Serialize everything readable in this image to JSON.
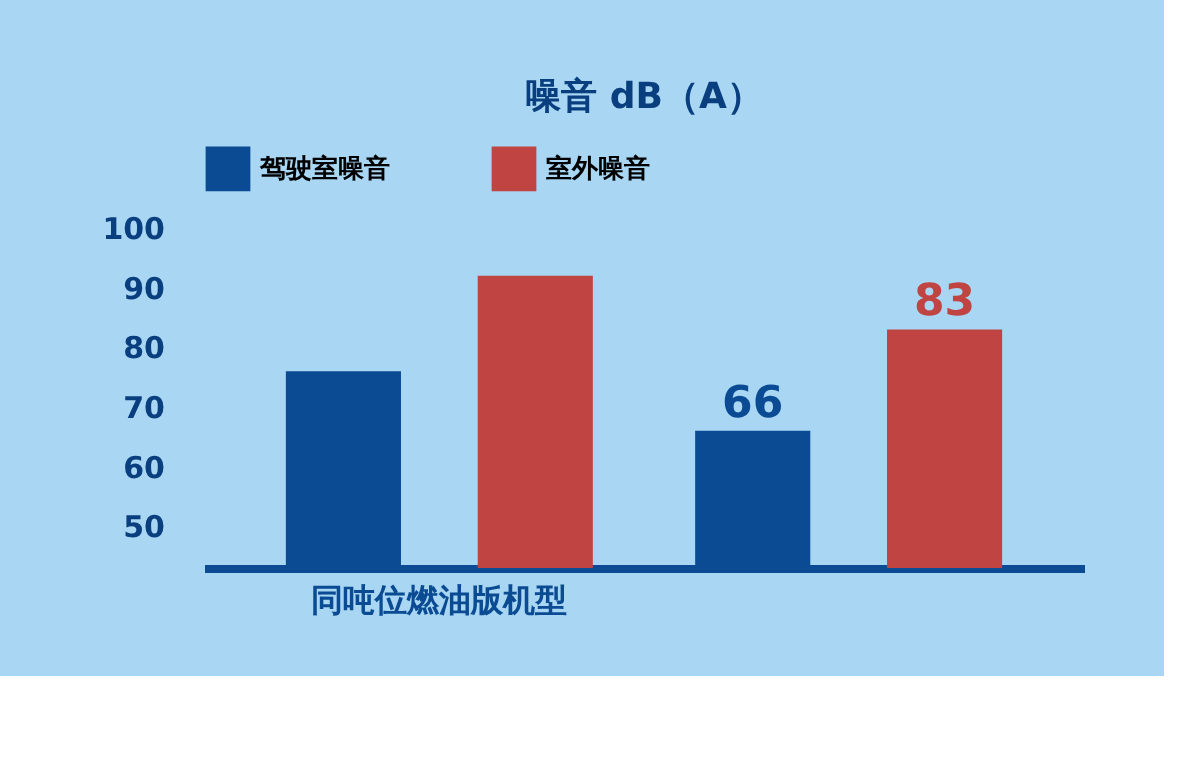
{
  "chart_data": {
    "type": "bar",
    "title": "噪音 dB（A）",
    "categories": [
      "同吨位燃油版机型",
      null
    ],
    "series": [
      {
        "name": "驾驶室噪音",
        "color": "#0a4b93",
        "values": [
          76,
          66
        ],
        "value_labels": [
          null,
          "66"
        ]
      },
      {
        "name": "室外噪音",
        "color": "#c04442",
        "values": [
          92,
          83
        ],
        "value_labels": [
          null,
          "83"
        ]
      }
    ],
    "ylim": [
      43,
      100
    ],
    "yticks": [
      50,
      60,
      70,
      80,
      90,
      100
    ],
    "grid": false,
    "legend": "top"
  }
}
